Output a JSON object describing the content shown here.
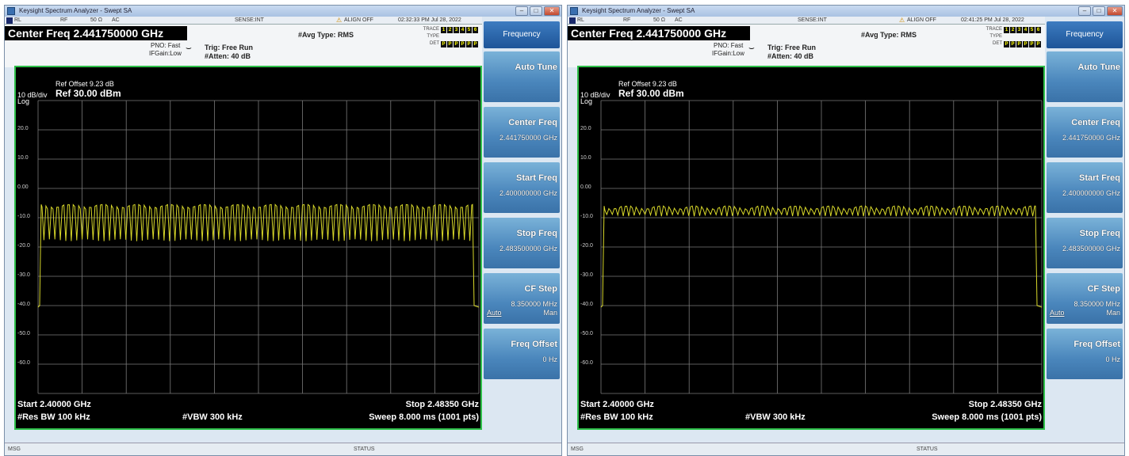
{
  "panels": [
    {
      "window_title": "Keysight Spectrum Analyzer - Swept SA",
      "status": {
        "rl": "RL",
        "rf": "RF",
        "ohm": "50 Ω",
        "ac": "AC",
        "sense": "SENSE:INT",
        "align": "ALIGN OFF",
        "time": "02:32:33 PM Jul 28, 2022"
      },
      "header": {
        "center_freq": "Center Freq 2.441750000 GHz",
        "pno": "PNO: Fast",
        "ifgain": "IFGain:Low",
        "trig": "Trig: Free Run",
        "atten": "#Atten: 40 dB",
        "avg": "#Avg Type: RMS",
        "trace_label": "TRACE",
        "type_label": "TYPE",
        "det_label": "DET",
        "trace_cells": [
          "1",
          "2",
          "3",
          "4",
          "5",
          "6"
        ],
        "det_cells": [
          "P",
          "P",
          "P",
          "P",
          "P",
          "P"
        ]
      },
      "plot": {
        "scale": "10 dB/div",
        "log": "Log",
        "ref_offset": "Ref Offset 9.23 dB",
        "ref": "Ref 30.00 dBm",
        "y_ticks": [
          "20.0",
          "10.0",
          "0.00",
          "-10.0",
          "-20.0",
          "-30.0",
          "-40.0",
          "-50.0",
          "-60.0"
        ],
        "start": "Start 2.40000 GHz",
        "stop": "Stop 2.48350 GHz",
        "rbw": "#Res BW 100 kHz",
        "vbw": "#VBW 300 kHz",
        "sweep": "Sweep  8.000 ms (1001 pts)"
      },
      "trace": {
        "top_dbm": -5.5,
        "bottom_dbm": -18,
        "floor_dbm": -40,
        "channels": 79,
        "color": "#d8d82a"
      },
      "footer": {
        "msg": "MSG",
        "status": "STATUS"
      },
      "softkeys": {
        "title": "Frequency",
        "items": [
          {
            "label": "Auto Tune",
            "value": ""
          },
          {
            "label": "Center Freq",
            "value": "2.441750000 GHz"
          },
          {
            "label": "Start Freq",
            "value": "2.400000000 GHz"
          },
          {
            "label": "Stop Freq",
            "value": "2.483500000 GHz"
          },
          {
            "label": "CF Step",
            "value": "8.350000 MHz",
            "auto": "Auto",
            "man": "Man"
          },
          {
            "label": "Freq Offset",
            "value": "0 Hz"
          }
        ]
      }
    },
    {
      "window_title": "Keysight Spectrum Analyzer - Swept SA",
      "status": {
        "rl": "RL",
        "rf": "RF",
        "ohm": "50 Ω",
        "ac": "AC",
        "sense": "SENSE:INT",
        "align": "ALIGN OFF",
        "time": "02:41:25 PM Jul 28, 2022"
      },
      "header": {
        "center_freq": "Center Freq 2.441750000 GHz",
        "pno": "PNO: Fast",
        "ifgain": "IFGain:Low",
        "trig": "Trig: Free Run",
        "atten": "#Atten: 40 dB",
        "avg": "#Avg Type: RMS",
        "trace_label": "TRACE",
        "type_label": "TYPE",
        "det_label": "DET",
        "trace_cells": [
          "1",
          "2",
          "3",
          "4",
          "5",
          "6"
        ],
        "det_cells": [
          "P",
          "P",
          "P",
          "P",
          "P",
          "P"
        ]
      },
      "plot": {
        "scale": "10 dB/div",
        "log": "Log",
        "ref_offset": "Ref Offset 9.23 dB",
        "ref": "Ref 30.00 dBm",
        "y_ticks": [
          "20.0",
          "10.0",
          "0.00",
          "-10.0",
          "-20.0",
          "-30.0",
          "-40.0",
          "-50.0",
          "-60.0"
        ],
        "start": "Start 2.40000 GHz",
        "stop": "Stop 2.48350 GHz",
        "rbw": "#Res BW 100 kHz",
        "vbw": "#VBW 300 kHz",
        "sweep": "Sweep  8.000 ms (1001 pts)"
      },
      "trace": {
        "top_dbm": -6,
        "bottom_dbm": -9.5,
        "floor_dbm": -40,
        "channels": 79,
        "color": "#d8d82a"
      },
      "footer": {
        "msg": "MSG",
        "status": "STATUS"
      },
      "softkeys": {
        "title": "Frequency",
        "items": [
          {
            "label": "Auto Tune",
            "value": ""
          },
          {
            "label": "Center Freq",
            "value": "2.441750000 GHz"
          },
          {
            "label": "Start Freq",
            "value": "2.400000000 GHz"
          },
          {
            "label": "Stop Freq",
            "value": "2.483500000 GHz"
          },
          {
            "label": "CF Step",
            "value": "8.350000 MHz",
            "auto": "Auto",
            "man": "Man"
          },
          {
            "label": "Freq Offset",
            "value": "0 Hz"
          }
        ]
      }
    }
  ]
}
